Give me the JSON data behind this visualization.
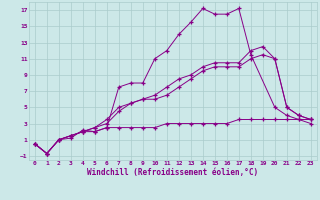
{
  "xlabel": "Windchill (Refroidissement éolien,°C)",
  "bg_color": "#cce8e8",
  "grid_color": "#aacccc",
  "line_color": "#880088",
  "xlim": [
    -0.5,
    23.5
  ],
  "ylim": [
    -1.5,
    18
  ],
  "xticks": [
    0,
    1,
    2,
    3,
    4,
    5,
    6,
    7,
    8,
    9,
    10,
    11,
    12,
    13,
    14,
    15,
    16,
    17,
    18,
    19,
    20,
    21,
    22,
    23
  ],
  "yticks": [
    -1,
    1,
    3,
    5,
    7,
    9,
    11,
    13,
    15,
    17
  ],
  "series1_x": [
    0,
    1,
    2,
    3,
    4,
    5,
    6,
    7,
    8,
    9,
    10,
    11,
    12,
    13,
    14,
    15,
    16,
    17,
    18,
    20,
    21,
    22,
    23
  ],
  "series1_y": [
    0.5,
    -0.7,
    1.0,
    1.2,
    2.2,
    2.0,
    2.5,
    7.5,
    8.0,
    8.0,
    11.0,
    12.0,
    14.0,
    15.5,
    17.2,
    16.5,
    16.5,
    17.2,
    11.5,
    5.0,
    4.0,
    3.5,
    3.0
  ],
  "series2_x": [
    0,
    1,
    2,
    3,
    4,
    5,
    6,
    7,
    8,
    9,
    10,
    11,
    12,
    13,
    14,
    15,
    16,
    17,
    18,
    19,
    20,
    21,
    22,
    23
  ],
  "series2_y": [
    0.5,
    -0.7,
    1.0,
    1.5,
    2.0,
    2.5,
    3.5,
    5.0,
    5.5,
    6.0,
    6.5,
    7.5,
    8.5,
    9.0,
    10.0,
    10.5,
    10.5,
    10.5,
    12.0,
    12.5,
    11.0,
    5.0,
    4.0,
    3.5
  ],
  "series3_x": [
    0,
    1,
    2,
    3,
    4,
    5,
    6,
    7,
    8,
    9,
    10,
    11,
    12,
    13,
    14,
    15,
    16,
    17,
    18,
    19,
    20,
    21,
    22,
    23
  ],
  "series3_y": [
    0.5,
    -0.7,
    1.0,
    1.5,
    2.0,
    2.5,
    3.0,
    4.5,
    5.5,
    6.0,
    6.0,
    6.5,
    7.5,
    8.5,
    9.5,
    10.0,
    10.0,
    10.0,
    11.0,
    11.5,
    11.0,
    5.0,
    4.0,
    3.5
  ],
  "series4_x": [
    0,
    1,
    2,
    3,
    4,
    5,
    6,
    7,
    8,
    9,
    10,
    11,
    12,
    13,
    14,
    15,
    16,
    17,
    18,
    19,
    20,
    21,
    22,
    23
  ],
  "series4_y": [
    0.5,
    -0.7,
    1.0,
    1.5,
    2.0,
    2.0,
    2.5,
    2.5,
    2.5,
    2.5,
    2.5,
    3.0,
    3.0,
    3.0,
    3.0,
    3.0,
    3.0,
    3.5,
    3.5,
    3.5,
    3.5,
    3.5,
    3.5,
    3.5
  ]
}
